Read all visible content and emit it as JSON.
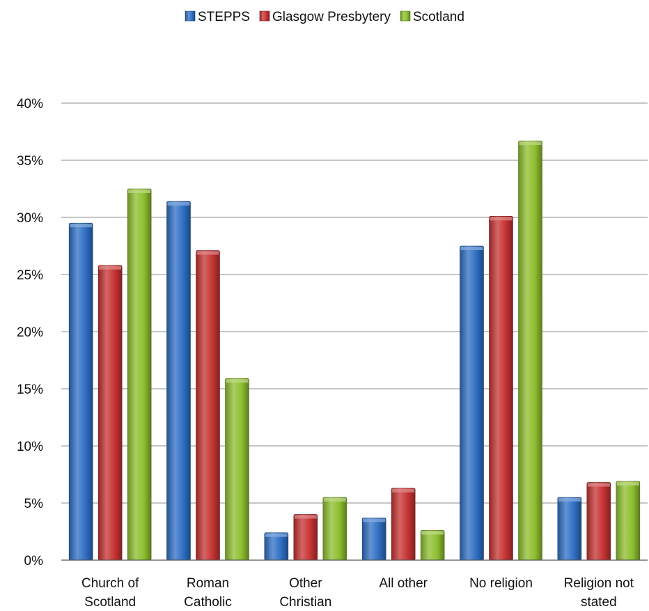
{
  "chart_data": {
    "type": "bar",
    "title": "",
    "xlabel": "",
    "ylabel": "",
    "ylim": [
      0,
      40
    ],
    "y_tick_format": "percent",
    "y_ticks": [
      "0%",
      "5%",
      "10%",
      "15%",
      "20%",
      "25%",
      "30%",
      "35%",
      "40%"
    ],
    "grid": "horizontal",
    "legend_position": "top-center",
    "categories": [
      [
        "Church of",
        "Scotland"
      ],
      [
        "Roman",
        "Catholic"
      ],
      [
        "Other",
        "Christian"
      ],
      [
        "All other"
      ],
      [
        "No religion"
      ],
      [
        "Religion not",
        "stated"
      ]
    ],
    "series": [
      {
        "name": "STEPPS",
        "color": "#2E6FC4",
        "values": [
          29.5,
          31.4,
          2.4,
          3.7,
          27.5,
          5.5
        ]
      },
      {
        "name": "Glasgow Presbytery",
        "color": "#C63232",
        "values": [
          25.8,
          27.1,
          4.0,
          6.3,
          30.1,
          6.8
        ]
      },
      {
        "name": "Scotland",
        "color": "#8DBE2E",
        "values": [
          32.5,
          15.9,
          5.5,
          2.6,
          36.7,
          6.9
        ]
      }
    ]
  }
}
